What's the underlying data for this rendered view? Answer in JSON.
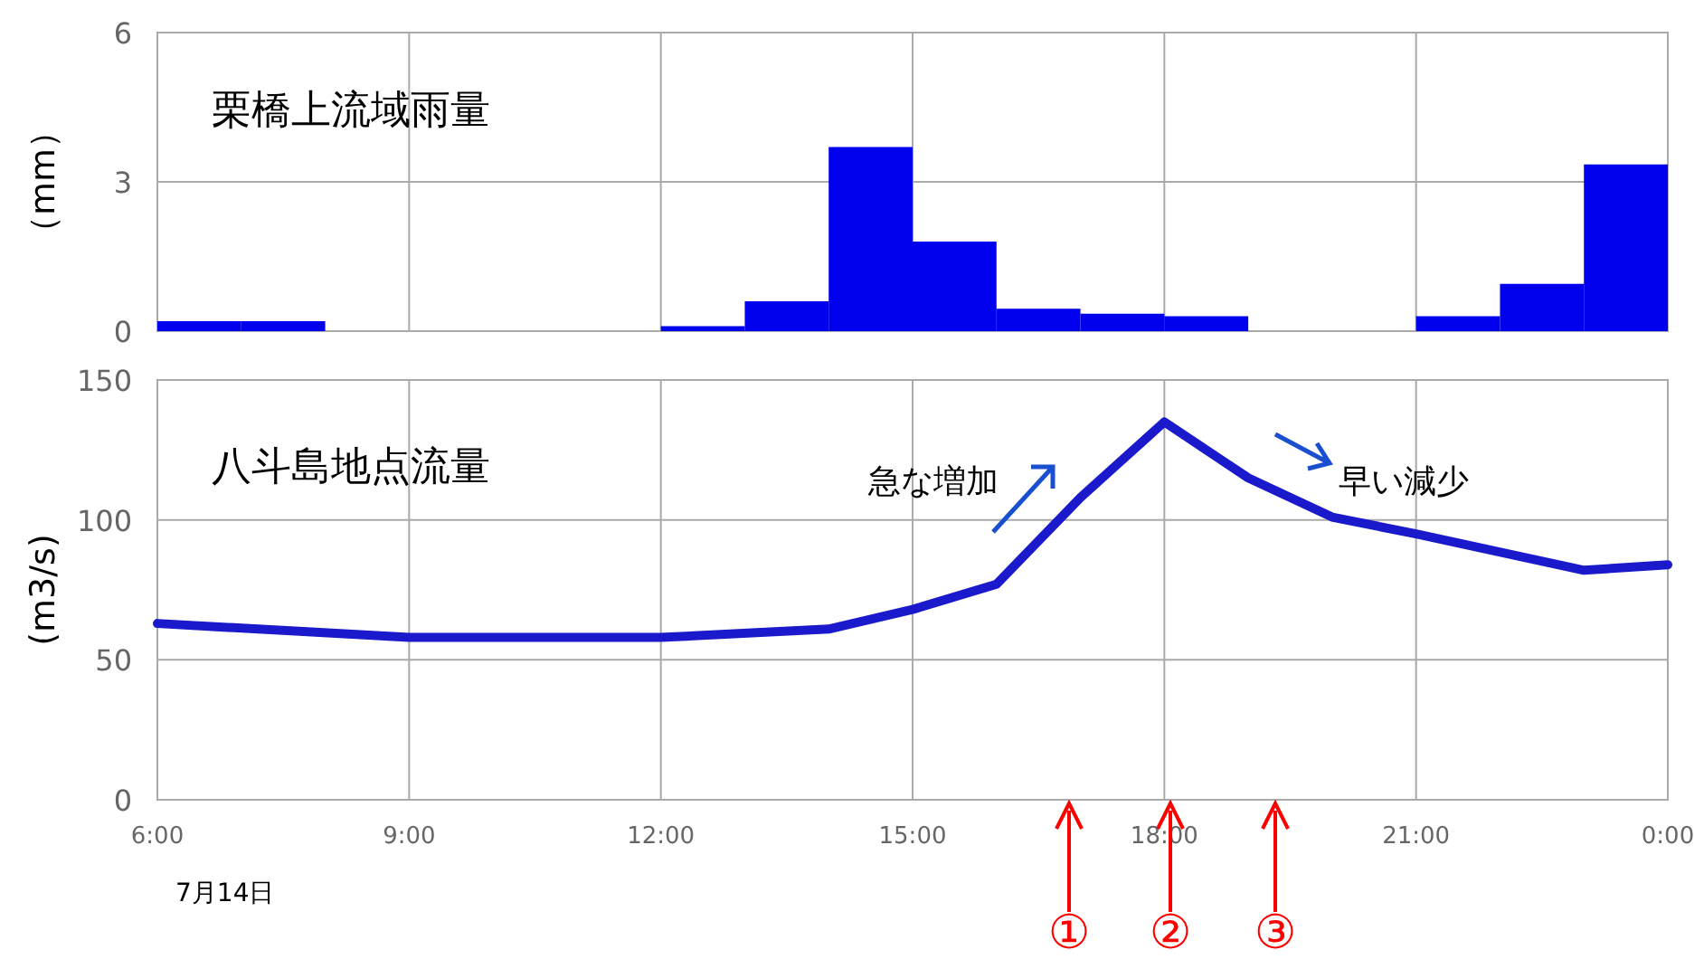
{
  "chart_data": [
    {
      "type": "histogram",
      "title": "栗橋上流域雨量",
      "ylabel": "（mm）",
      "color": "#0000ee",
      "bins": [
        6,
        7,
        8,
        9,
        10,
        11,
        12,
        13,
        14,
        15,
        16,
        17,
        18,
        19,
        20,
        21,
        22,
        23,
        24
      ],
      "values": [
        0.2,
        0.2,
        0,
        0,
        0,
        0,
        0.1,
        0.6,
        3.7,
        1.8,
        0.45,
        0.35,
        0.3,
        0,
        0,
        0.3,
        0.95,
        3.35
      ],
      "xlim": [
        6,
        24
      ],
      "xticks": [
        6,
        9,
        12,
        15,
        18,
        21,
        24
      ],
      "ylim": [
        0,
        6
      ],
      "yticks": [
        0,
        3,
        6
      ],
      "grid": true,
      "tick_labels": "y"
    },
    {
      "type": "line",
      "title": "八斗島地点流量",
      "ylabel": "(m3/s)",
      "color": "#1a1acc",
      "x": [
        6,
        9,
        12,
        14,
        15,
        16,
        17,
        18,
        19,
        20,
        21,
        23,
        24
      ],
      "values": [
        63,
        58,
        58,
        61,
        68,
        77,
        108,
        135,
        115,
        101,
        95,
        82,
        84
      ],
      "xlim": [
        6,
        24
      ],
      "xticks": [
        {
          "value": 6,
          "label": "6:00"
        },
        {
          "value": 9,
          "label": "9:00"
        },
        {
          "value": 12,
          "label": "12:00"
        },
        {
          "value": 15,
          "label": "15:00"
        },
        {
          "value": 18,
          "label": "18:00"
        },
        {
          "value": 21,
          "label": "21:00"
        },
        {
          "value": 24,
          "label": "0:00"
        }
      ],
      "ylim": [
        0,
        150
      ],
      "yticks": [
        0,
        50,
        100,
        150
      ],
      "grid": true,
      "annotations": [
        "急な増加",
        "早い減少",
        "①",
        "②",
        "③",
        "7月14日"
      ]
    }
  ]
}
